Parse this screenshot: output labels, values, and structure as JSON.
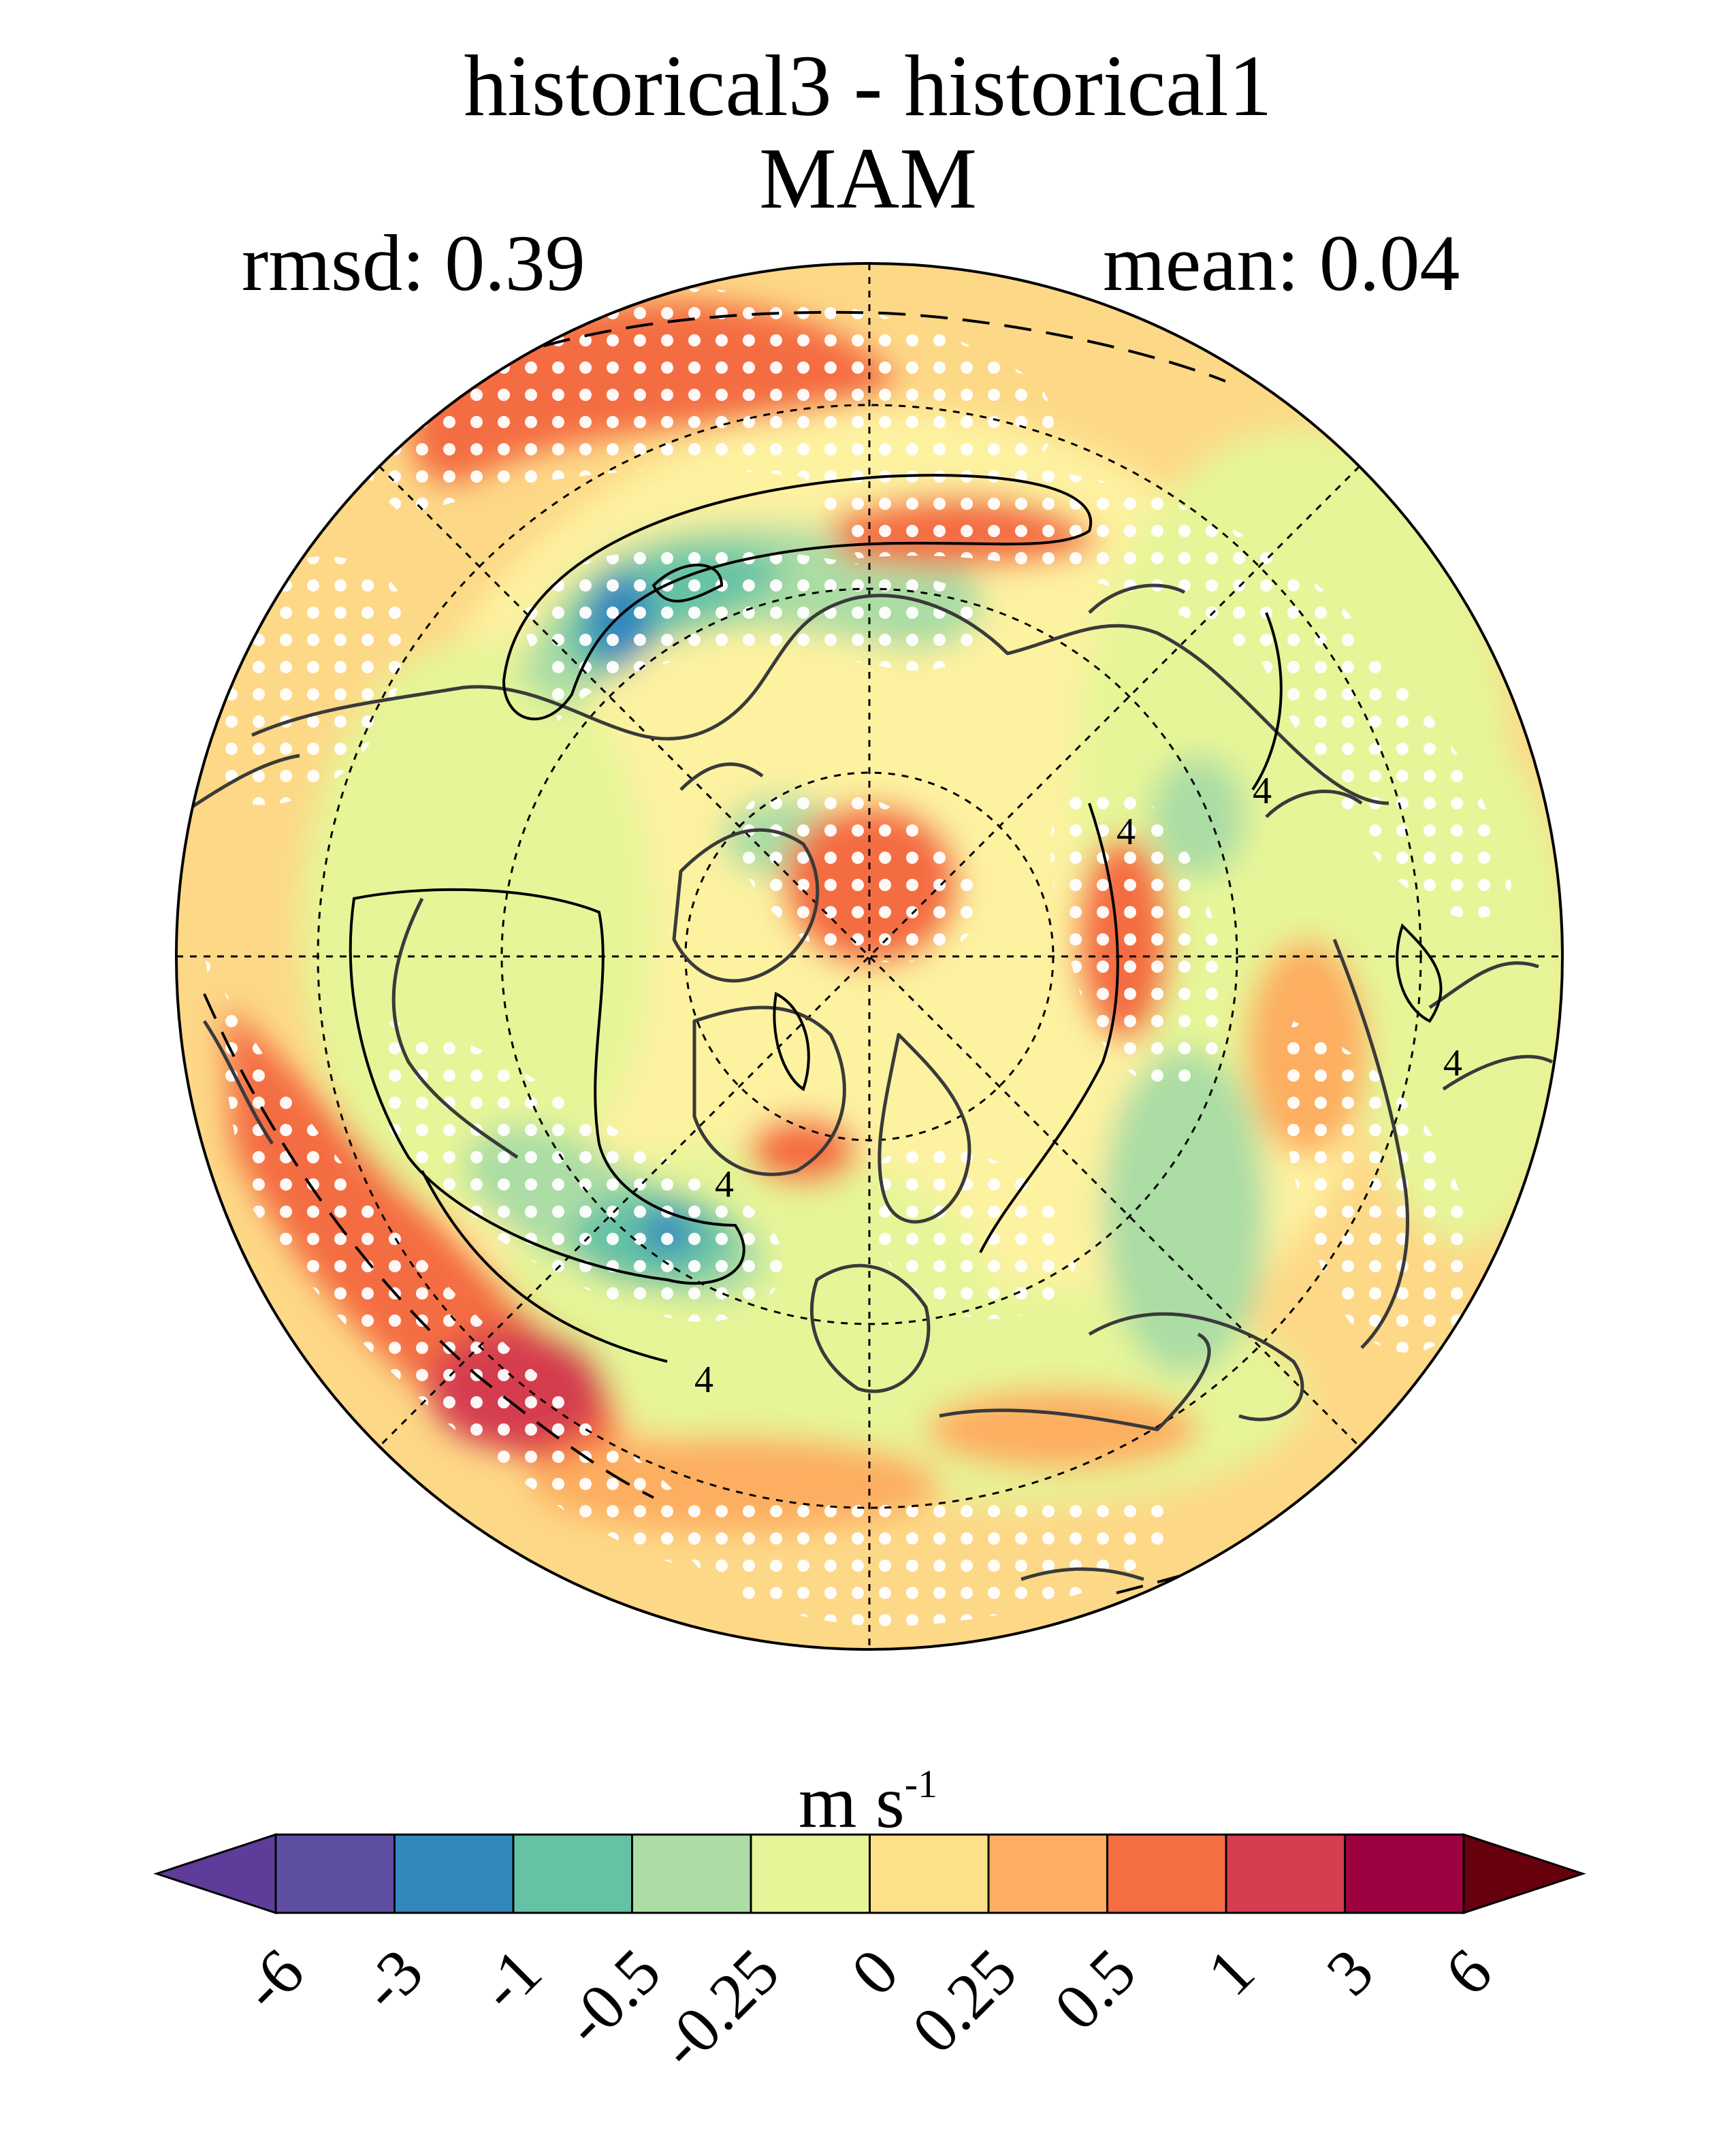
{
  "figure": {
    "title_line1": "historical3 - historical1",
    "title_line2": "MAM",
    "rmsd_text": "rmsd: 0.39",
    "mean_text": "mean: 0.04",
    "contour_label": "4"
  },
  "colorbar": {
    "units_main": "m s",
    "units_exponent": "-1",
    "levels": [
      "-6",
      "-3",
      "-1",
      "-0.5",
      "-0.25",
      "0",
      "0.25",
      "0.5",
      "1",
      "3",
      "6"
    ],
    "colors": [
      "#5e4fa2",
      "#3288bd",
      "#66c2a5",
      "#abdda4",
      "#e6f598",
      "#fee08b",
      "#fdae61",
      "#f46d43",
      "#d53e4f",
      "#9e0142"
    ],
    "under_color": "#5e3c99",
    "over_color": "#67000d"
  },
  "map_colors": {
    "background": "#fdd887",
    "land_outline": "#3a3a3a",
    "stipple": "#ffffff"
  }
}
